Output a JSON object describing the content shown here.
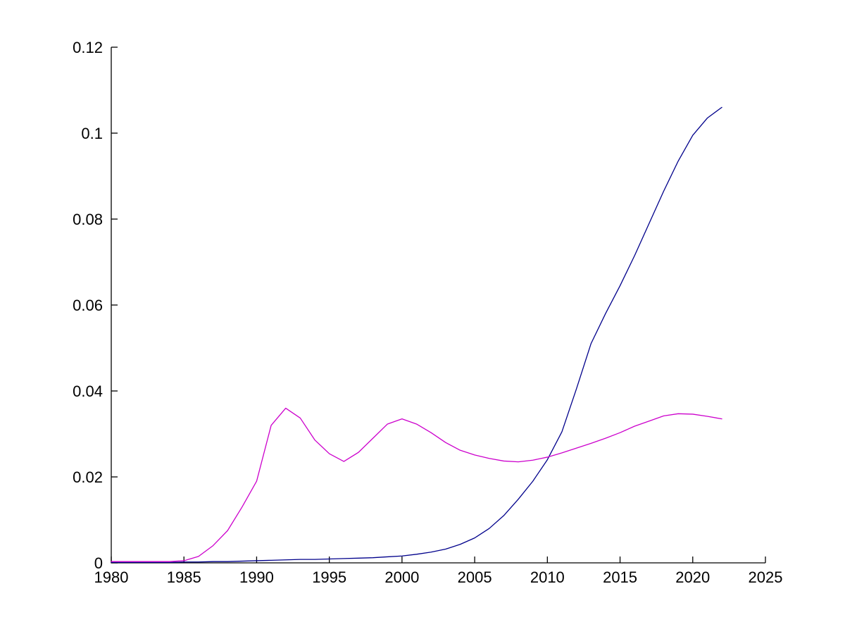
{
  "figure": {
    "background_color": "#FFFFFF",
    "axis_color": "#000000",
    "tick_label_color": "#000000"
  },
  "chart_data": {
    "type": "line",
    "title": "",
    "xlabel": "",
    "ylabel": "",
    "grid": false,
    "legend": null,
    "xlim": [
      1980,
      2025
    ],
    "ylim": [
      0,
      0.12
    ],
    "x_ticks": [
      1980,
      1985,
      1990,
      1995,
      2000,
      2005,
      2010,
      2015,
      2020,
      2025
    ],
    "x_tick_labels": [
      "1980",
      "1985",
      "1990",
      "1995",
      "2000",
      "2005",
      "2010",
      "2015",
      "2020",
      "2025"
    ],
    "y_ticks": [
      0,
      0.02,
      0.04,
      0.06,
      0.08,
      0.1,
      0.12
    ],
    "y_tick_labels": [
      "0",
      "0.02",
      "0.04",
      "0.06",
      "0.08",
      "0.1",
      "0.12"
    ],
    "x": [
      1980,
      1981,
      1982,
      1983,
      1984,
      1985,
      1986,
      1987,
      1988,
      1989,
      1990,
      1991,
      1992,
      1993,
      1994,
      1995,
      1996,
      1997,
      1998,
      1999,
      2000,
      2001,
      2002,
      2003,
      2004,
      2005,
      2006,
      2007,
      2008,
      2009,
      2010,
      2011,
      2012,
      2013,
      2014,
      2015,
      2016,
      2017,
      2018,
      2019,
      2020,
      2021,
      2022
    ],
    "series": [
      {
        "name": "dark-blue-line",
        "color": "#00008B",
        "values": [
          0.0001,
          0.0001,
          0.0001,
          0.0001,
          0.0001,
          0.0002,
          0.0002,
          0.0003,
          0.0003,
          0.0004,
          0.0005,
          0.0006,
          0.0007,
          0.0008,
          0.0008,
          0.0009,
          0.001,
          0.0011,
          0.0012,
          0.0014,
          0.0016,
          0.002,
          0.0025,
          0.0032,
          0.0043,
          0.0058,
          0.008,
          0.011,
          0.0148,
          0.019,
          0.024,
          0.0305,
          0.0405,
          0.051,
          0.058,
          0.0645,
          0.0715,
          0.079,
          0.0865,
          0.0935,
          0.0995,
          0.1035,
          0.106
        ]
      },
      {
        "name": "magenta-line",
        "color": "#CC00CC",
        "values": [
          0.0003,
          0.0003,
          0.0003,
          0.0003,
          0.0003,
          0.0005,
          0.0015,
          0.004,
          0.0075,
          0.013,
          0.019,
          0.032,
          0.036,
          0.0337,
          0.0286,
          0.0254,
          0.0236,
          0.0257,
          0.029,
          0.0323,
          0.0335,
          0.0323,
          0.0303,
          0.028,
          0.0262,
          0.0251,
          0.0243,
          0.0237,
          0.0235,
          0.0239,
          0.0246,
          0.0256,
          0.0267,
          0.0278,
          0.029,
          0.0303,
          0.0318,
          0.033,
          0.0342,
          0.0347,
          0.0346,
          0.0341,
          0.0335
        ]
      }
    ]
  }
}
